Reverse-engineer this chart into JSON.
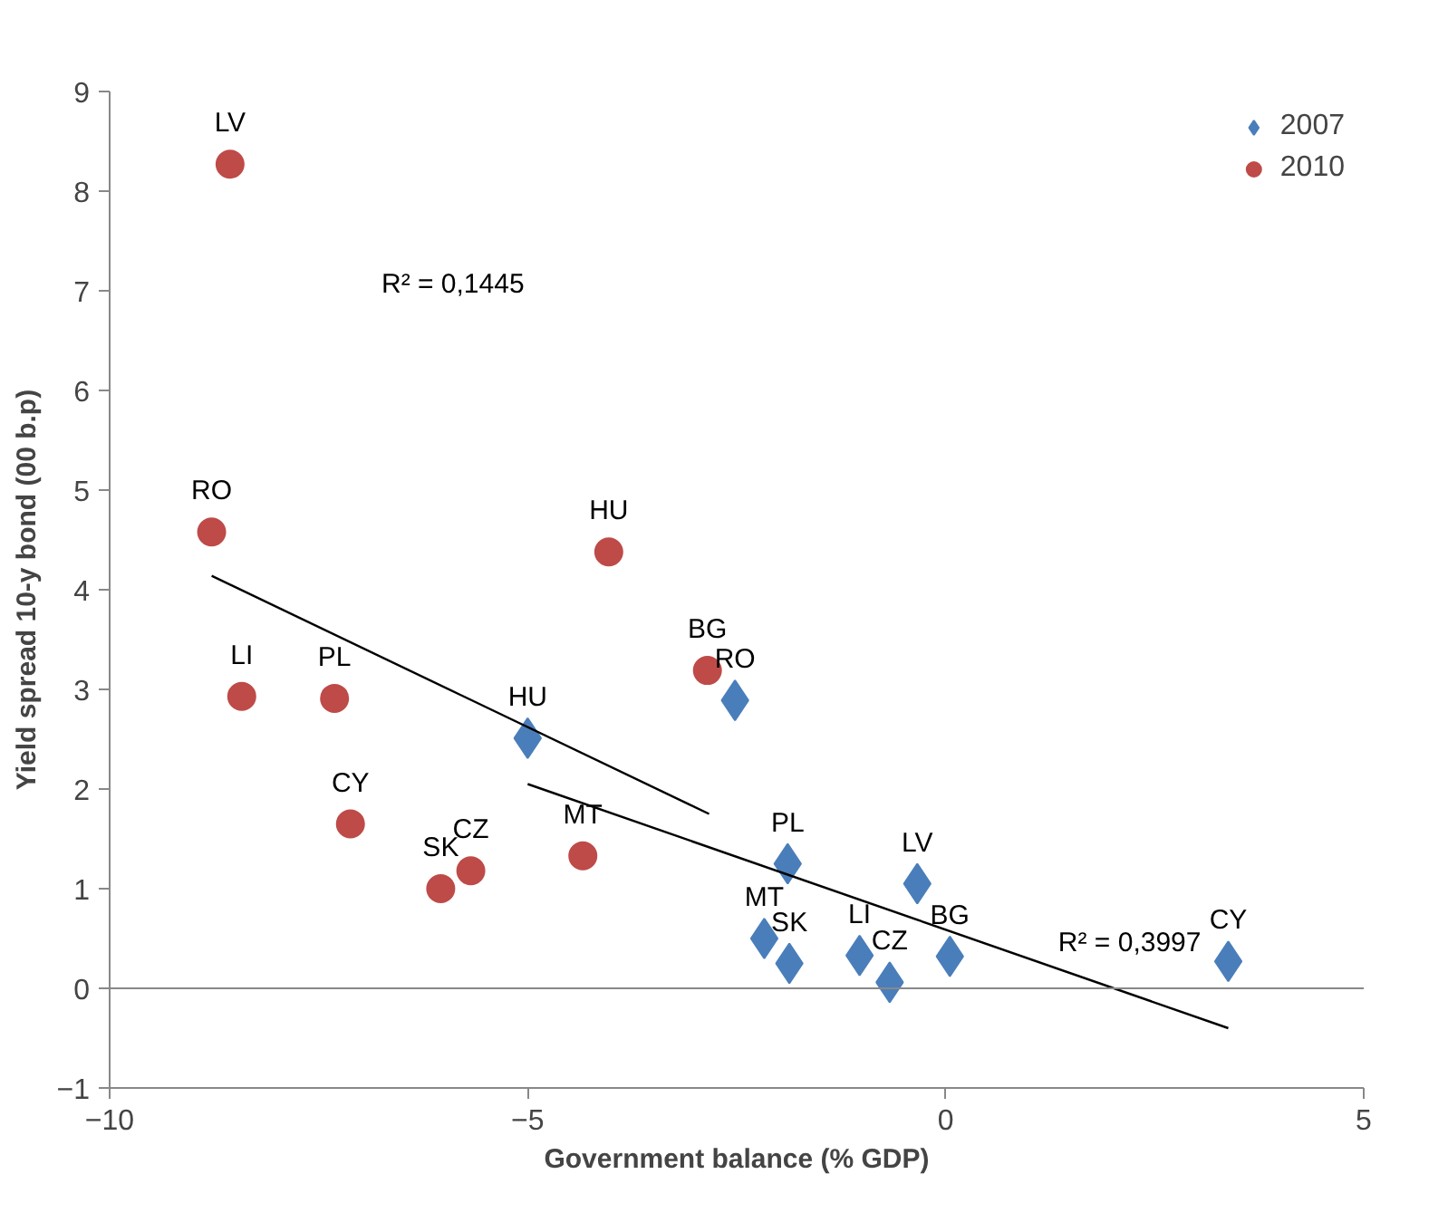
{
  "chart_data": {
    "type": "scatter",
    "xlabel": "Government balance (% GDP)",
    "ylabel": "Yield spread 10-y bond (00 b.p)",
    "xlim": [
      -10,
      5
    ],
    "xticks": [
      -10,
      -5,
      0,
      5
    ],
    "ylim": [
      -1,
      9
    ],
    "yticks": [
      -1,
      0,
      1,
      2,
      3,
      4,
      5,
      6,
      7,
      8,
      9
    ],
    "grid": false,
    "legend": "top right",
    "series": [
      {
        "name": "2007",
        "color": "#4a7ebb",
        "marker": "diamond",
        "x": [
          -5.0,
          -2.52,
          -1.89,
          -2.17,
          -1.87,
          -1.03,
          -0.67,
          -0.34,
          0.05,
          3.38
        ],
        "values": [
          2.51,
          2.89,
          1.25,
          0.5,
          0.25,
          0.33,
          0.06,
          1.05,
          0.32,
          0.27
        ]
      },
      {
        "name": "2010",
        "color": "#be4b48",
        "marker": "circle",
        "x": [
          -8.56,
          -8.78,
          -8.42,
          -7.31,
          -7.12,
          -6.04,
          -5.68,
          -4.34,
          -4.03,
          -2.85
        ],
        "values": [
          8.27,
          4.58,
          2.93,
          2.91,
          1.65,
          1.0,
          1.18,
          1.33,
          4.38,
          3.19
        ]
      },
      {
        "type": "line",
        "color": "#000000",
        "x": [
          -8.78,
          -2.83
        ],
        "values": [
          4.14,
          1.75
        ]
      },
      {
        "type": "line",
        "color": "#000000",
        "x": [
          -5.0,
          3.38
        ],
        "values": [
          2.05,
          -0.4
        ]
      }
    ],
    "ref_lines": [
      {
        "axis": "y",
        "value": 0,
        "color": "#888888"
      }
    ],
    "annotations": [
      {
        "text": "HU",
        "x": -5.0,
        "y": 2.51
      },
      {
        "text": "RO",
        "x": -2.52,
        "y": 2.89
      },
      {
        "text": "PL",
        "x": -1.89,
        "y": 1.25
      },
      {
        "text": "MT",
        "x": -2.17,
        "y": 0.5
      },
      {
        "text": "SK",
        "x": -1.87,
        "y": 0.25
      },
      {
        "text": "LI",
        "x": -1.03,
        "y": 0.33
      },
      {
        "text": "CZ",
        "x": -0.67,
        "y": 0.06
      },
      {
        "text": "LV",
        "x": -0.34,
        "y": 1.05
      },
      {
        "text": "BG",
        "x": 0.05,
        "y": 0.32
      },
      {
        "text": "CY",
        "x": 3.38,
        "y": 0.27
      },
      {
        "text": "LV",
        "x": -8.56,
        "y": 8.27
      },
      {
        "text": "RO",
        "x": -8.78,
        "y": 4.58
      },
      {
        "text": "LI",
        "x": -8.42,
        "y": 2.93
      },
      {
        "text": "PL",
        "x": -7.31,
        "y": 2.91
      },
      {
        "text": "CY",
        "x": -7.12,
        "y": 1.65
      },
      {
        "text": "SK",
        "x": -6.04,
        "y": 1.0
      },
      {
        "text": "CZ",
        "x": -5.68,
        "y": 1.18
      },
      {
        "text": "MT",
        "x": -4.34,
        "y": 1.33
      },
      {
        "text": "HU",
        "x": -4.03,
        "y": 4.38
      },
      {
        "text": "BG",
        "x": -2.85,
        "y": 3.19
      },
      "R² = 0,1445",
      {
        "text": "R² = 0,3997",
        "x": 2.2,
        "y": 0.05
      }
    ]
  }
}
